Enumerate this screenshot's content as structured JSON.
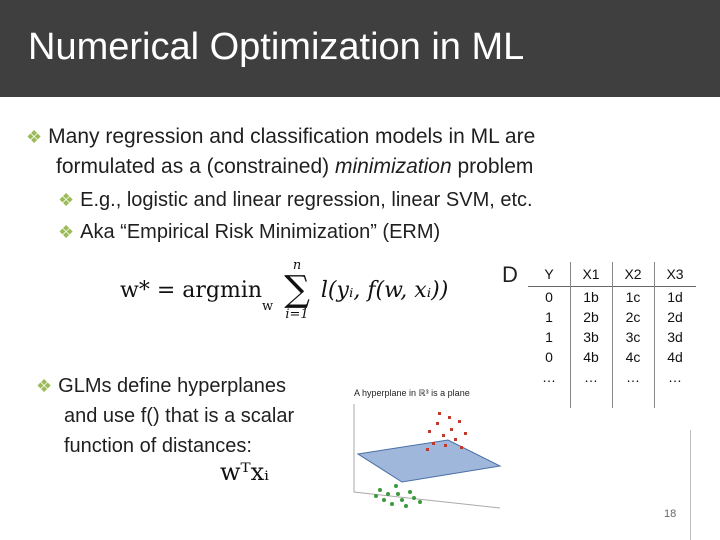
{
  "slide": {
    "title": "Numerical Optimization in ML",
    "page_number": "18"
  },
  "bullets": {
    "main_line1": "Many regression and classification models in ML are",
    "main_line2_pre": "formulated as a (constrained) ",
    "main_line2_em": "minimization",
    "main_line2_post": " problem",
    "sub1": "E.g., logistic and linear regression, linear SVM, etc.",
    "sub2": "Aka “Empirical Risk Minimization” (ERM)",
    "glm_line1": "GLMs define hyperplanes",
    "glm_line2": "and use f() that is a scalar",
    "glm_line3": "function of distances:"
  },
  "equations": {
    "erm_lhs": "w* = argmin",
    "erm_sub": "w",
    "erm_sum_top": "n",
    "erm_sum_bottom": "i=1",
    "erm_rhs": "l(yᵢ, f(w, xᵢ))",
    "glm": "wᵀxᵢ"
  },
  "table": {
    "d_label": "D",
    "headers": [
      "Y",
      "X1",
      "X2",
      "X3"
    ],
    "rows": [
      [
        "0",
        "1b",
        "1c",
        "1d"
      ],
      [
        "1",
        "2b",
        "2c",
        "2d"
      ],
      [
        "1",
        "3b",
        "3c",
        "3d"
      ],
      [
        "0",
        "4b",
        "4c",
        "4d"
      ],
      [
        "…",
        "…",
        "…",
        "…"
      ]
    ]
  },
  "figure": {
    "caption": "A hyperplane in ℝ³ is a plane",
    "colors": {
      "red": "#c0392b",
      "green": "#3a9a3a",
      "plane": "#7f9fcf"
    }
  },
  "colors": {
    "title_bg": "#3f3f3f",
    "bullet_diamond": "#9bbb59"
  }
}
